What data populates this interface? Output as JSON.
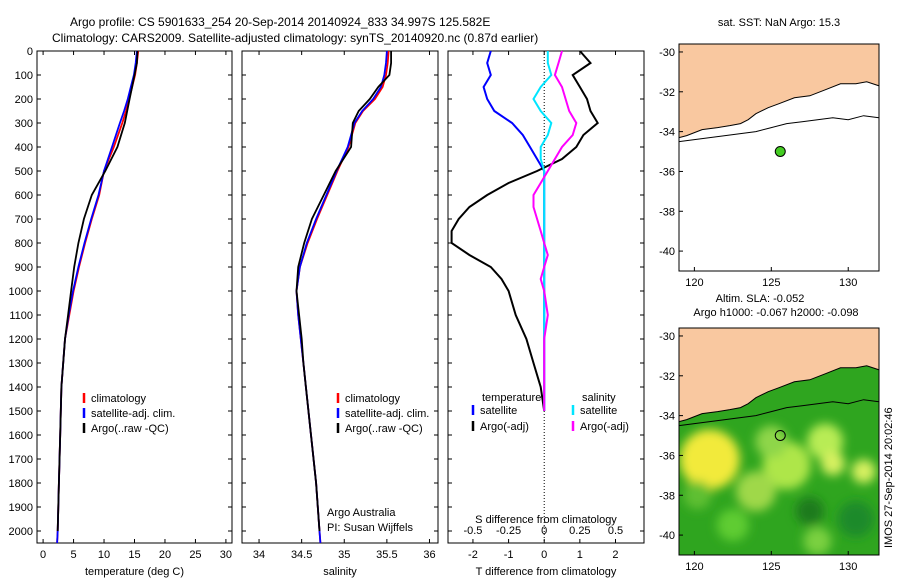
{
  "header": {
    "line1": "Argo profile: CS 5901633_254 20-Sep-2014 20140924_833 34.997S 125.582E",
    "line2": "Climatology: CARS2009. Satellite-adjusted climatology: synTS_20140920.nc (0.87d earlier)"
  },
  "colors": {
    "climatology": "#ff0000",
    "satellite": "#0000ff",
    "argo": "#000000",
    "sal_sat": "#00e5ff",
    "sal_argo": "#ff00ff",
    "land": "#f9c8a0"
  },
  "chart_data": [
    {
      "type": "line",
      "xlabel": "temperature (deg C)",
      "xlim": [
        -1,
        31
      ],
      "xticks": [
        0,
        5,
        10,
        15,
        20,
        25,
        30
      ],
      "ylim": [
        2050,
        0
      ],
      "yticks": [
        0,
        100,
        200,
        300,
        400,
        500,
        600,
        700,
        800,
        900,
        1000,
        1100,
        1200,
        1300,
        1400,
        1500,
        1600,
        1700,
        1800,
        1900,
        2000
      ],
      "legend": [
        "climatology",
        "satellite-adj. clim.",
        "Argo(..raw -QC)"
      ],
      "depth": [
        0,
        50,
        100,
        150,
        200,
        250,
        300,
        400,
        500,
        600,
        700,
        800,
        900,
        1000,
        1100,
        1200,
        1300,
        1400,
        1600,
        1800,
        2000,
        2050
      ],
      "series": [
        {
          "name": "climatology",
          "values": [
            15.6,
            15.4,
            15.1,
            14.6,
            14.1,
            13.6,
            13.0,
            11.6,
            10.0,
            9.2,
            8.0,
            6.9,
            5.9,
            5.0,
            4.3,
            3.6,
            3.3,
            3.0,
            2.8,
            2.6,
            2.4,
            2.3
          ]
        },
        {
          "name": "satellite-adj. clim.",
          "values": [
            15.4,
            15.2,
            14.9,
            14.4,
            13.9,
            13.3,
            12.6,
            11.3,
            10.0,
            9.1,
            7.9,
            6.8,
            5.8,
            4.9,
            4.2,
            3.6,
            3.3,
            3.0,
            2.8,
            2.6,
            2.4,
            2.3
          ]
        },
        {
          "name": "Argo(..raw -QC)",
          "values": [
            15.5,
            15.4,
            15.0,
            14.6,
            14.2,
            13.8,
            13.4,
            12.2,
            10.2,
            8.0,
            6.7,
            5.8,
            5.1,
            4.6,
            4.1,
            3.6,
            3.3,
            3.0,
            2.8,
            2.6,
            2.4,
            null
          ]
        }
      ]
    },
    {
      "type": "line",
      "xlabel": "salinity",
      "xlim": [
        33.8,
        36.1
      ],
      "xticks": [
        34,
        34.5,
        35,
        35.5,
        36
      ],
      "ylim": [
        2050,
        0
      ],
      "legend": [
        "climatology",
        "satellite-adj. clim.",
        "Argo(..raw -QC)"
      ],
      "annotation": [
        "Argo Australia",
        "PI: Susan Wijffels"
      ],
      "depth": [
        0,
        50,
        100,
        150,
        200,
        250,
        300,
        400,
        500,
        600,
        700,
        800,
        900,
        1000,
        1100,
        1200,
        1300,
        1400,
        1600,
        1800,
        2000,
        2050
      ],
      "series": [
        {
          "name": "climatology",
          "values": [
            35.52,
            35.51,
            35.49,
            35.45,
            35.36,
            35.22,
            35.13,
            35.05,
            34.92,
            34.8,
            34.68,
            34.57,
            34.48,
            34.44,
            34.46,
            34.49,
            34.52,
            34.55,
            34.61,
            34.67,
            34.71,
            34.72
          ]
        },
        {
          "name": "satellite-adj. clim.",
          "values": [
            35.5,
            35.49,
            35.47,
            35.43,
            35.34,
            35.21,
            35.12,
            35.04,
            34.91,
            34.79,
            34.67,
            34.56,
            34.48,
            34.44,
            34.46,
            34.49,
            34.52,
            34.55,
            34.61,
            34.67,
            34.71,
            34.72
          ]
        },
        {
          "name": "Argo(..raw -QC)",
          "values": [
            35.55,
            35.55,
            35.53,
            35.4,
            35.3,
            35.17,
            35.1,
            35.08,
            34.9,
            34.76,
            34.62,
            34.53,
            34.46,
            34.44,
            34.47,
            34.5,
            34.52,
            34.55,
            34.61,
            34.67,
            34.71,
            null
          ]
        }
      ]
    },
    {
      "type": "line",
      "xlabel": "T difference from climatology",
      "xlabel2": "S difference from climatology",
      "xlim": [
        -2.7,
        2.8
      ],
      "xticks": [
        -2,
        -1,
        0,
        1,
        2
      ],
      "xticks2": [
        -0.5,
        -0.25,
        0,
        0.25,
        0.5
      ],
      "ylim": [
        2050,
        0
      ],
      "legend_temperature_title": "temperature",
      "legend_salinity_title": "salinity",
      "legend": [
        "satellite",
        "Argo(-adj)",
        "satellite",
        "Argo(-adj)"
      ],
      "depth": [
        0,
        50,
        100,
        150,
        200,
        250,
        300,
        350,
        400,
        450,
        500,
        550,
        600,
        650,
        700,
        750,
        800,
        850,
        900,
        950,
        1000,
        1100,
        1200,
        1300,
        1400,
        1500
      ],
      "series": [
        {
          "name": "satellite",
          "values": [
            -1.5,
            -1.6,
            -1.5,
            -1.7,
            -1.6,
            -1.4,
            -0.9,
            -0.6,
            -0.4,
            -0.2,
            0.0,
            0.0,
            0.0,
            0.0,
            0.0,
            0.0,
            0.0,
            0.0,
            0.0,
            0.0,
            0.0,
            0.0,
            0.0,
            0.0,
            0.0,
            0.0
          ]
        },
        {
          "name": "Argo(-adj)",
          "values": [
            1.0,
            1.3,
            0.8,
            1.0,
            1.2,
            1.3,
            1.5,
            1.1,
            0.9,
            0.5,
            -0.2,
            -1.0,
            -1.6,
            -2.1,
            -2.4,
            -2.6,
            -2.6,
            -2.1,
            -1.5,
            -1.2,
            -1.0,
            -0.8,
            -0.5,
            -0.3,
            -0.1,
            0.0
          ]
        },
        {
          "name": "satellite",
          "values": [
            0.1,
            0.1,
            0.2,
            -0.1,
            -0.3,
            -0.1,
            0.2,
            0.1,
            -0.1,
            -0.1,
            0.0,
            0.0,
            0.0,
            0.0,
            0.0,
            0.0,
            0.0,
            0.0,
            0.0,
            0.0,
            0.0,
            0.0,
            0.0,
            0.0,
            0.0,
            0.0
          ]
        },
        {
          "name": "Argo(-adj)",
          "values": [
            0.5,
            0.4,
            0.3,
            0.5,
            0.6,
            0.7,
            0.9,
            0.8,
            0.5,
            0.3,
            0.1,
            -0.1,
            -0.3,
            -0.3,
            -0.2,
            -0.1,
            0.0,
            0.1,
            0.0,
            -0.1,
            0.0,
            0.1,
            0.0,
            0.0,
            0.0,
            0.0
          ]
        }
      ]
    },
    {
      "type": "scatter",
      "title": "sat. SST: NaN Argo: 15.3",
      "xlim": [
        119,
        132
      ],
      "ylim": [
        -41,
        -29.6
      ],
      "xticks": [
        120,
        125,
        130
      ],
      "yticks": [
        -30,
        -32,
        -34,
        -36,
        -38,
        -40
      ],
      "point": {
        "lon": 125.582,
        "lat": -34.997
      }
    },
    {
      "type": "heatmap",
      "title_line1": "Altim. SLA: -0.052",
      "title_line2": "Argo h1000: -0.067 h2000: -0.098",
      "xlim": [
        119,
        132
      ],
      "ylim": [
        -41,
        -29.6
      ],
      "xticks": [
        120,
        125,
        130
      ],
      "yticks": [
        -30,
        -32,
        -34,
        -36,
        -38,
        -40
      ],
      "point": {
        "lon": 125.582,
        "lat": -34.997
      }
    }
  ],
  "side_label": "IMOS 27-Sep-2014 20:02:46"
}
